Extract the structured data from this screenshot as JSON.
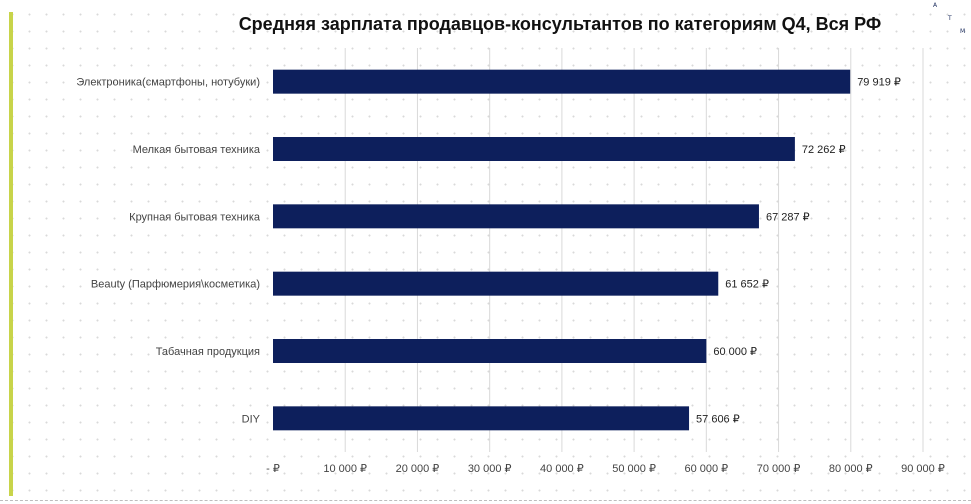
{
  "logo": {
    "letters": [
      "A",
      "T",
      "M"
    ]
  },
  "colors": {
    "bar": "#0d1f5c",
    "gridline": "#d9d9d9",
    "accent": "#c8d44a"
  },
  "chart_data": {
    "type": "bar",
    "orientation": "horizontal",
    "title": "Средняя зарплата продавцов-консультантов по категориям Q4, Вся РФ",
    "categories": [
      "Электроника(смартфоны, нотубуки)",
      "Мелкая бытовая техника",
      "Крупная бытовая техника",
      "Beauty (Парфюмерия\\косметика)",
      "Табачная продукция",
      "DIY"
    ],
    "values": [
      79919,
      72262,
      67287,
      61652,
      60000,
      57606
    ],
    "value_labels": [
      "79 919 ₽",
      "72 262 ₽",
      "67 287 ₽",
      "61 652 ₽",
      "60 000 ₽",
      "57 606 ₽"
    ],
    "xlim": [
      0,
      90000
    ],
    "xticks": [
      0,
      10000,
      20000,
      30000,
      40000,
      50000,
      60000,
      70000,
      80000,
      90000
    ],
    "xtick_labels": [
      "-  ₽",
      "10 000 ₽",
      "20 000 ₽",
      "30 000 ₽",
      "40 000 ₽",
      "50 000 ₽",
      "60 000 ₽",
      "70 000 ₽",
      "80 000 ₽",
      "90 000 ₽"
    ],
    "xlabel": "",
    "ylabel": "",
    "grid": true,
    "legend": "none"
  }
}
